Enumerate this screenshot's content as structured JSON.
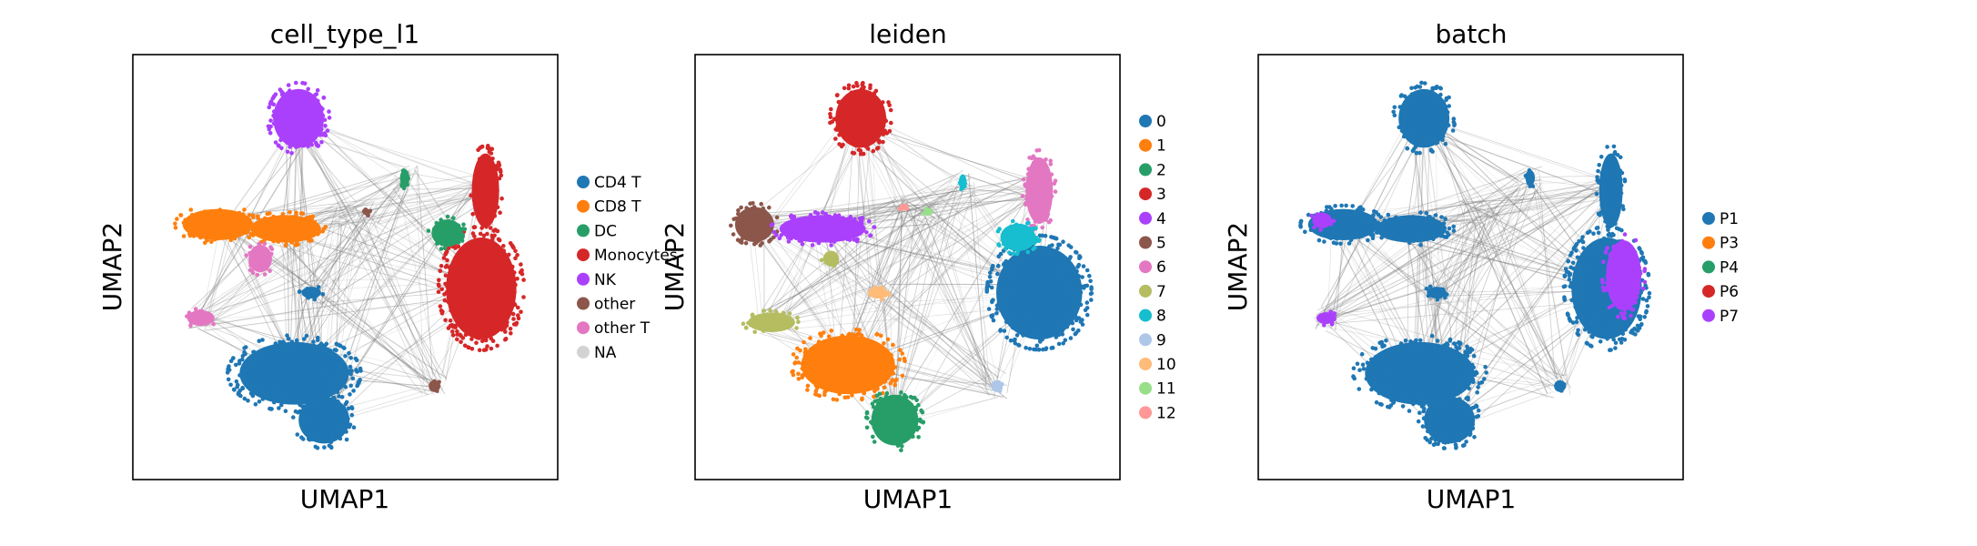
{
  "chart_data": [
    {
      "type": "scatter",
      "title": "cell_type_l1",
      "xlabel": "UMAP1",
      "ylabel": "UMAP2",
      "xlim": [
        0,
        10
      ],
      "ylim": [
        0,
        10
      ],
      "grid": false,
      "legend_position": "right",
      "legend": [
        {
          "name": "CD4 T",
          "color": "#1f77b4"
        },
        {
          "name": "CD8 T",
          "color": "#ff7f0e"
        },
        {
          "name": "DC",
          "color": "#279e68"
        },
        {
          "name": "Monocytes",
          "color": "#d62728"
        },
        {
          "name": "NK",
          "color": "#aa40fc"
        },
        {
          "name": "other",
          "color": "#8c564b"
        },
        {
          "name": "other T",
          "color": "#e377c2"
        },
        {
          "name": "NA",
          "color": "#d3d3d3"
        }
      ],
      "clusters": [
        {
          "label": "NK",
          "x": 3.9,
          "y": 8.5,
          "rx": 0.65,
          "ry": 0.75,
          "color": "#aa40fc"
        },
        {
          "label": "CD8 T",
          "x": 2.0,
          "y": 6.0,
          "rx": 0.9,
          "ry": 0.4,
          "color": "#ff7f0e"
        },
        {
          "label": "CD8 T",
          "x": 3.6,
          "y": 5.9,
          "rx": 0.9,
          "ry": 0.35,
          "color": "#ff7f0e"
        },
        {
          "label": "other T",
          "x": 3.0,
          "y": 5.2,
          "rx": 0.3,
          "ry": 0.35,
          "color": "#e377c2"
        },
        {
          "label": "other T",
          "x": 1.6,
          "y": 3.8,
          "rx": 0.35,
          "ry": 0.2,
          "color": "#e377c2"
        },
        {
          "label": "CD4 T",
          "x": 3.8,
          "y": 2.5,
          "rx": 1.4,
          "ry": 0.8,
          "color": "#1f77b4"
        },
        {
          "label": "CD4 T",
          "x": 4.5,
          "y": 1.4,
          "rx": 0.65,
          "ry": 0.6,
          "color": "#1f77b4"
        },
        {
          "label": "CD4 T",
          "x": 4.2,
          "y": 4.4,
          "rx": 0.25,
          "ry": 0.15,
          "color": "#1f77b4"
        },
        {
          "label": "Monocytes",
          "x": 8.2,
          "y": 4.5,
          "rx": 0.9,
          "ry": 1.3,
          "color": "#d62728"
        },
        {
          "label": "Monocytes",
          "x": 8.3,
          "y": 6.8,
          "rx": 0.35,
          "ry": 0.95,
          "color": "#d62728"
        },
        {
          "label": "DC",
          "x": 7.4,
          "y": 5.8,
          "rx": 0.4,
          "ry": 0.35,
          "color": "#279e68"
        },
        {
          "label": "DC",
          "x": 6.4,
          "y": 7.1,
          "rx": 0.12,
          "ry": 0.22,
          "color": "#279e68"
        },
        {
          "label": "other",
          "x": 7.1,
          "y": 2.2,
          "rx": 0.15,
          "ry": 0.15,
          "color": "#8c564b"
        },
        {
          "label": "other",
          "x": 5.5,
          "y": 6.3,
          "rx": 0.1,
          "ry": 0.08,
          "color": "#8c564b"
        }
      ],
      "edge_nodes": [
        [
          3.9,
          8.4
        ],
        [
          2.2,
          6.0
        ],
        [
          3.5,
          5.9
        ],
        [
          3.8,
          2.5
        ],
        [
          4.5,
          1.4
        ],
        [
          8.2,
          4.5
        ],
        [
          8.3,
          6.9
        ],
        [
          6.4,
          7.1
        ],
        [
          7.1,
          2.2
        ],
        [
          5.0,
          6.3
        ],
        [
          5.5,
          6.3
        ],
        [
          4.2,
          4.4
        ],
        [
          1.6,
          3.8
        ]
      ]
    },
    {
      "type": "scatter",
      "title": "leiden",
      "xlabel": "UMAP1",
      "ylabel": "UMAP2",
      "xlim": [
        0,
        10
      ],
      "ylim": [
        0,
        10
      ],
      "grid": false,
      "legend_position": "right",
      "legend": [
        {
          "name": "0",
          "color": "#1f77b4"
        },
        {
          "name": "1",
          "color": "#ff7f0e"
        },
        {
          "name": "2",
          "color": "#279e68"
        },
        {
          "name": "3",
          "color": "#d62728"
        },
        {
          "name": "4",
          "color": "#aa40fc"
        },
        {
          "name": "5",
          "color": "#8c564b"
        },
        {
          "name": "6",
          "color": "#e377c2"
        },
        {
          "name": "7",
          "color": "#b5bd61"
        },
        {
          "name": "8",
          "color": "#17becf"
        },
        {
          "name": "9",
          "color": "#aec7e8"
        },
        {
          "name": "10",
          "color": "#ffbb78"
        },
        {
          "name": "11",
          "color": "#98df8a"
        },
        {
          "name": "12",
          "color": "#ff9896"
        }
      ],
      "clusters": [
        {
          "label": "3",
          "x": 3.9,
          "y": 8.5,
          "rx": 0.65,
          "ry": 0.75,
          "color": "#d62728"
        },
        {
          "label": "5",
          "x": 1.4,
          "y": 6.0,
          "rx": 0.5,
          "ry": 0.45,
          "color": "#8c564b"
        },
        {
          "label": "4",
          "x": 3.0,
          "y": 5.9,
          "rx": 1.1,
          "ry": 0.35,
          "color": "#aa40fc"
        },
        {
          "label": "7",
          "x": 3.2,
          "y": 5.2,
          "rx": 0.2,
          "ry": 0.2,
          "color": "#b5bd61"
        },
        {
          "label": "7",
          "x": 1.8,
          "y": 3.7,
          "rx": 0.6,
          "ry": 0.25,
          "color": "#b5bd61"
        },
        {
          "label": "1",
          "x": 3.6,
          "y": 2.7,
          "rx": 1.2,
          "ry": 0.75,
          "color": "#ff7f0e"
        },
        {
          "label": "2",
          "x": 4.7,
          "y": 1.4,
          "rx": 0.6,
          "ry": 0.65,
          "color": "#279e68"
        },
        {
          "label": "10",
          "x": 4.3,
          "y": 4.4,
          "rx": 0.25,
          "ry": 0.15,
          "color": "#ffbb78"
        },
        {
          "label": "0",
          "x": 8.1,
          "y": 4.4,
          "rx": 1.1,
          "ry": 1.2,
          "color": "#1f77b4"
        },
        {
          "label": "6",
          "x": 8.1,
          "y": 6.8,
          "rx": 0.35,
          "ry": 0.85,
          "color": "#e377c2"
        },
        {
          "label": "8",
          "x": 7.6,
          "y": 5.7,
          "rx": 0.45,
          "ry": 0.35,
          "color": "#17becf"
        },
        {
          "label": "8",
          "x": 6.3,
          "y": 7.0,
          "rx": 0.1,
          "ry": 0.2,
          "color": "#17becf"
        },
        {
          "label": "9",
          "x": 7.1,
          "y": 2.2,
          "rx": 0.15,
          "ry": 0.15,
          "color": "#aec7e8"
        },
        {
          "label": "11",
          "x": 5.5,
          "y": 6.3,
          "rx": 0.12,
          "ry": 0.08,
          "color": "#98df8a"
        },
        {
          "label": "12",
          "x": 4.9,
          "y": 6.4,
          "rx": 0.08,
          "ry": 0.08,
          "color": "#ff9896"
        }
      ],
      "edge_nodes": [
        [
          3.9,
          8.4
        ],
        [
          1.4,
          6.0
        ],
        [
          3.0,
          5.9
        ],
        [
          3.6,
          2.7
        ],
        [
          4.7,
          1.4
        ],
        [
          8.1,
          4.4
        ],
        [
          8.1,
          6.9
        ],
        [
          6.3,
          7.0
        ],
        [
          7.1,
          2.2
        ],
        [
          4.9,
          6.4
        ],
        [
          5.5,
          6.3
        ],
        [
          4.3,
          4.4
        ],
        [
          1.8,
          3.7
        ]
      ]
    },
    {
      "type": "scatter",
      "title": "batch",
      "xlabel": "UMAP1",
      "ylabel": "UMAP2",
      "xlim": [
        0,
        10
      ],
      "ylim": [
        0,
        10
      ],
      "grid": false,
      "legend_position": "right",
      "legend": [
        {
          "name": "P1",
          "color": "#1f77b4"
        },
        {
          "name": "P3",
          "color": "#ff7f0e"
        },
        {
          "name": "P4",
          "color": "#279e68"
        },
        {
          "name": "P6",
          "color": "#d62728"
        },
        {
          "name": "P7",
          "color": "#aa40fc"
        }
      ],
      "clusters": [
        {
          "label": "P1",
          "x": 3.9,
          "y": 8.5,
          "rx": 0.65,
          "ry": 0.75,
          "color": "#1f77b4"
        },
        {
          "label": "P1",
          "x": 2.0,
          "y": 6.0,
          "rx": 0.9,
          "ry": 0.4,
          "color": "#1f77b4"
        },
        {
          "label": "P1",
          "x": 3.6,
          "y": 5.9,
          "rx": 0.9,
          "ry": 0.35,
          "color": "#1f77b4"
        },
        {
          "label": "P1",
          "x": 3.8,
          "y": 2.5,
          "rx": 1.4,
          "ry": 0.8,
          "color": "#1f77b4"
        },
        {
          "label": "P1",
          "x": 4.5,
          "y": 1.4,
          "rx": 0.65,
          "ry": 0.6,
          "color": "#1f77b4"
        },
        {
          "label": "P1",
          "x": 8.2,
          "y": 4.5,
          "rx": 0.9,
          "ry": 1.3,
          "color": "#1f77b4"
        },
        {
          "label": "P1",
          "x": 8.3,
          "y": 6.8,
          "rx": 0.3,
          "ry": 0.95,
          "color": "#1f77b4"
        },
        {
          "label": "P7",
          "x": 8.6,
          "y": 4.8,
          "rx": 0.45,
          "ry": 0.9,
          "color": "#aa40fc"
        },
        {
          "label": "P7",
          "x": 1.5,
          "y": 6.1,
          "rx": 0.25,
          "ry": 0.2,
          "color": "#aa40fc"
        },
        {
          "label": "P7",
          "x": 1.6,
          "y": 3.8,
          "rx": 0.25,
          "ry": 0.15,
          "color": "#aa40fc"
        },
        {
          "label": "P1",
          "x": 7.1,
          "y": 2.2,
          "rx": 0.15,
          "ry": 0.15,
          "color": "#1f77b4"
        },
        {
          "label": "P1",
          "x": 4.2,
          "y": 4.4,
          "rx": 0.25,
          "ry": 0.15,
          "color": "#1f77b4"
        },
        {
          "label": "P1",
          "x": 6.4,
          "y": 7.1,
          "rx": 0.12,
          "ry": 0.2,
          "color": "#1f77b4"
        }
      ],
      "edge_nodes": [
        [
          3.9,
          8.4
        ],
        [
          2.0,
          6.0
        ],
        [
          3.6,
          5.9
        ],
        [
          3.8,
          2.5
        ],
        [
          4.5,
          1.4
        ],
        [
          8.2,
          4.5
        ],
        [
          8.3,
          6.9
        ],
        [
          6.4,
          7.1
        ],
        [
          7.1,
          2.2
        ],
        [
          5.0,
          6.3
        ],
        [
          5.5,
          6.3
        ],
        [
          4.2,
          4.4
        ],
        [
          1.6,
          3.8
        ]
      ]
    }
  ],
  "colors": {
    "edge": "#808080",
    "frame": "#000000"
  }
}
